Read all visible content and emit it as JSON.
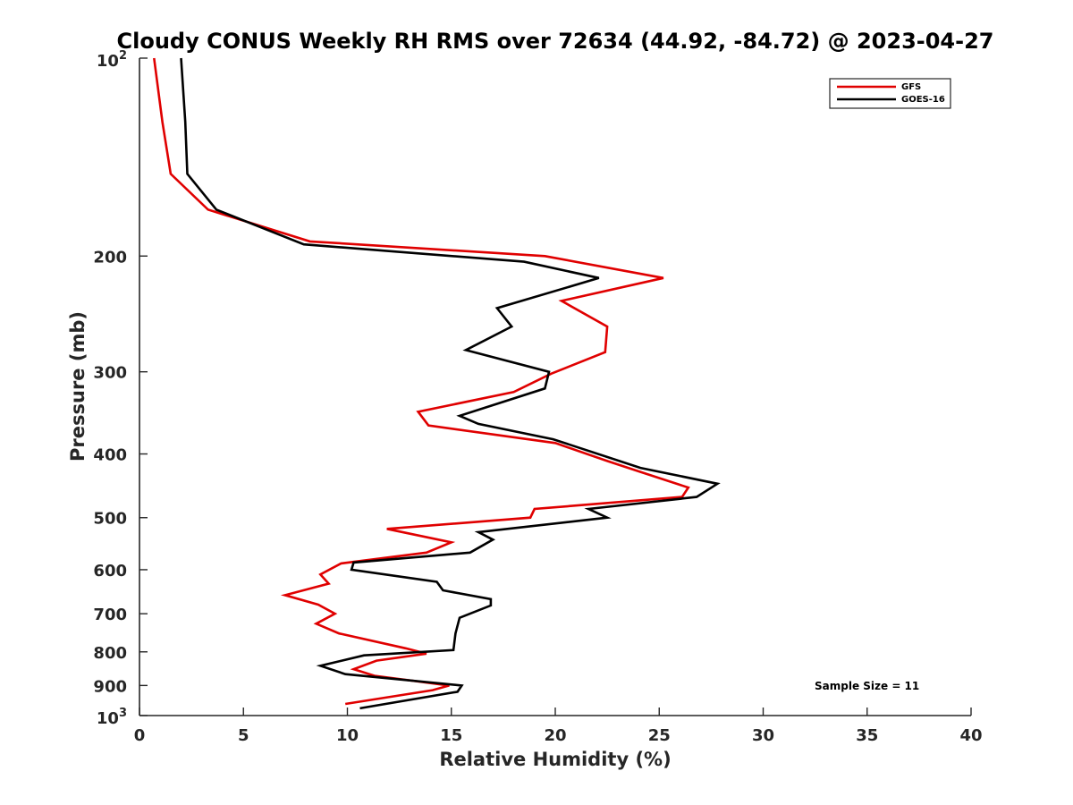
{
  "chart_data": {
    "type": "line",
    "title": "Cloudy CONUS Weekly RH RMS over 72634 (44.92, -84.72) @ 2023-04-27",
    "xlabel": "Relative Humidity (%)",
    "ylabel": "Pressure (mb)",
    "xlim": [
      0,
      40
    ],
    "ylim": [
      1000,
      100
    ],
    "yscale": "log",
    "y_reversed": true,
    "grid": false,
    "legend_position": "top-right",
    "annotation": "Sample Size = 11",
    "x_ticks": [
      0,
      5,
      10,
      15,
      20,
      25,
      30,
      35,
      40
    ],
    "x_tick_labels": [
      "0",
      "5",
      "10",
      "15",
      "20",
      "25",
      "30",
      "35",
      "40"
    ],
    "y_ticks": [
      200,
      300,
      400,
      500,
      600,
      700,
      800,
      900
    ],
    "y_tick_labels": [
      "200",
      "300",
      "400",
      "500",
      "600",
      "700",
      "800",
      "900"
    ],
    "y_endpoint_labels": [
      {
        "value": 100,
        "base": "10",
        "exp": "2"
      },
      {
        "value": 1000,
        "base": "10",
        "exp": "3"
      }
    ],
    "series": [
      {
        "name": "GFS",
        "color": "#e00000",
        "points": [
          {
            "x": 0.7,
            "y": 100
          },
          {
            "x": 1.1,
            "y": 125
          },
          {
            "x": 1.5,
            "y": 150
          },
          {
            "x": 3.3,
            "y": 170
          },
          {
            "x": 8.2,
            "y": 190
          },
          {
            "x": 19.5,
            "y": 200
          },
          {
            "x": 25.2,
            "y": 216
          },
          {
            "x": 20.3,
            "y": 234
          },
          {
            "x": 22.5,
            "y": 256
          },
          {
            "x": 22.4,
            "y": 280
          },
          {
            "x": 19.8,
            "y": 302
          },
          {
            "x": 18.0,
            "y": 322
          },
          {
            "x": 13.4,
            "y": 345
          },
          {
            "x": 13.9,
            "y": 362
          },
          {
            "x": 20.0,
            "y": 385
          },
          {
            "x": 22.5,
            "y": 410
          },
          {
            "x": 24.0,
            "y": 425
          },
          {
            "x": 26.4,
            "y": 450
          },
          {
            "x": 26.1,
            "y": 465
          },
          {
            "x": 19.0,
            "y": 485
          },
          {
            "x": 18.8,
            "y": 500
          },
          {
            "x": 11.9,
            "y": 520
          },
          {
            "x": 15.0,
            "y": 545
          },
          {
            "x": 13.8,
            "y": 565
          },
          {
            "x": 9.7,
            "y": 587
          },
          {
            "x": 8.7,
            "y": 610
          },
          {
            "x": 9.1,
            "y": 630
          },
          {
            "x": 7.0,
            "y": 656
          },
          {
            "x": 8.6,
            "y": 678
          },
          {
            "x": 9.4,
            "y": 700
          },
          {
            "x": 8.5,
            "y": 725
          },
          {
            "x": 9.6,
            "y": 750
          },
          {
            "x": 12.8,
            "y": 790
          },
          {
            "x": 13.8,
            "y": 805
          },
          {
            "x": 11.4,
            "y": 825
          },
          {
            "x": 10.3,
            "y": 850
          },
          {
            "x": 11.3,
            "y": 870
          },
          {
            "x": 14.9,
            "y": 900
          },
          {
            "x": 14.1,
            "y": 915
          },
          {
            "x": 9.9,
            "y": 960
          }
        ]
      },
      {
        "name": "GOES-16",
        "color": "#000000",
        "points": [
          {
            "x": 2.0,
            "y": 100
          },
          {
            "x": 2.2,
            "y": 125
          },
          {
            "x": 2.3,
            "y": 150
          },
          {
            "x": 3.7,
            "y": 170
          },
          {
            "x": 7.9,
            "y": 192
          },
          {
            "x": 18.5,
            "y": 204
          },
          {
            "x": 22.1,
            "y": 216
          },
          {
            "x": 17.2,
            "y": 240
          },
          {
            "x": 17.9,
            "y": 256
          },
          {
            "x": 15.7,
            "y": 278
          },
          {
            "x": 19.7,
            "y": 300
          },
          {
            "x": 19.5,
            "y": 318
          },
          {
            "x": 15.4,
            "y": 350
          },
          {
            "x": 16.3,
            "y": 360
          },
          {
            "x": 19.9,
            "y": 380
          },
          {
            "x": 24.1,
            "y": 420
          },
          {
            "x": 27.8,
            "y": 444
          },
          {
            "x": 26.8,
            "y": 465
          },
          {
            "x": 21.6,
            "y": 485
          },
          {
            "x": 22.5,
            "y": 500
          },
          {
            "x": 16.3,
            "y": 526
          },
          {
            "x": 17.0,
            "y": 540
          },
          {
            "x": 15.9,
            "y": 565
          },
          {
            "x": 10.3,
            "y": 585
          },
          {
            "x": 10.2,
            "y": 600
          },
          {
            "x": 14.3,
            "y": 626
          },
          {
            "x": 14.6,
            "y": 645
          },
          {
            "x": 16.9,
            "y": 665
          },
          {
            "x": 16.9,
            "y": 680
          },
          {
            "x": 15.4,
            "y": 710
          },
          {
            "x": 15.2,
            "y": 750
          },
          {
            "x": 15.1,
            "y": 795
          },
          {
            "x": 10.8,
            "y": 810
          },
          {
            "x": 8.7,
            "y": 840
          },
          {
            "x": 9.9,
            "y": 865
          },
          {
            "x": 15.5,
            "y": 900
          },
          {
            "x": 15.3,
            "y": 920
          },
          {
            "x": 10.6,
            "y": 975
          }
        ]
      }
    ]
  }
}
